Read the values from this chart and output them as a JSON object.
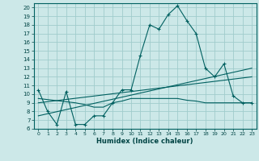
{
  "xlabel": "Humidex (Indice chaleur)",
  "bg_color": "#cce8e8",
  "grid_color": "#a0cccc",
  "line_color": "#006060",
  "xlim": [
    -0.5,
    23.5
  ],
  "ylim": [
    6,
    20.5
  ],
  "xticks": [
    0,
    1,
    2,
    3,
    4,
    5,
    6,
    7,
    8,
    9,
    10,
    11,
    12,
    13,
    14,
    15,
    16,
    17,
    18,
    19,
    20,
    21,
    22,
    23
  ],
  "yticks": [
    6,
    7,
    8,
    9,
    10,
    11,
    12,
    13,
    14,
    15,
    16,
    17,
    18,
    19,
    20
  ],
  "line1_x": [
    0,
    1,
    2,
    3,
    4,
    5,
    6,
    7,
    8,
    9,
    10,
    11,
    12,
    13,
    14,
    15,
    16,
    17,
    18,
    19,
    20,
    21,
    22,
    23
  ],
  "line1_y": [
    10.5,
    8.0,
    6.5,
    10.3,
    6.5,
    6.5,
    7.5,
    7.5,
    9.0,
    10.5,
    10.5,
    14.5,
    18.0,
    17.5,
    19.2,
    20.2,
    18.5,
    17.0,
    13.0,
    12.0,
    13.5,
    9.8,
    9.0,
    9.0
  ],
  "line2_x": [
    0,
    4,
    5,
    6,
    7,
    8,
    9,
    10,
    11,
    12,
    13,
    14,
    15,
    16,
    17,
    18,
    19,
    20,
    21,
    22,
    23
  ],
  "line2_y": [
    9.5,
    9.0,
    8.8,
    8.5,
    8.5,
    9.0,
    9.2,
    9.5,
    9.5,
    9.5,
    9.5,
    9.5,
    9.5,
    9.3,
    9.2,
    9.0,
    9.0,
    9.0,
    9.0,
    9.0,
    9.0
  ],
  "line3_x": [
    0,
    23
  ],
  "line3_y": [
    7.5,
    13.0
  ],
  "line4_x": [
    0,
    23
  ],
  "line4_y": [
    9.0,
    12.0
  ]
}
